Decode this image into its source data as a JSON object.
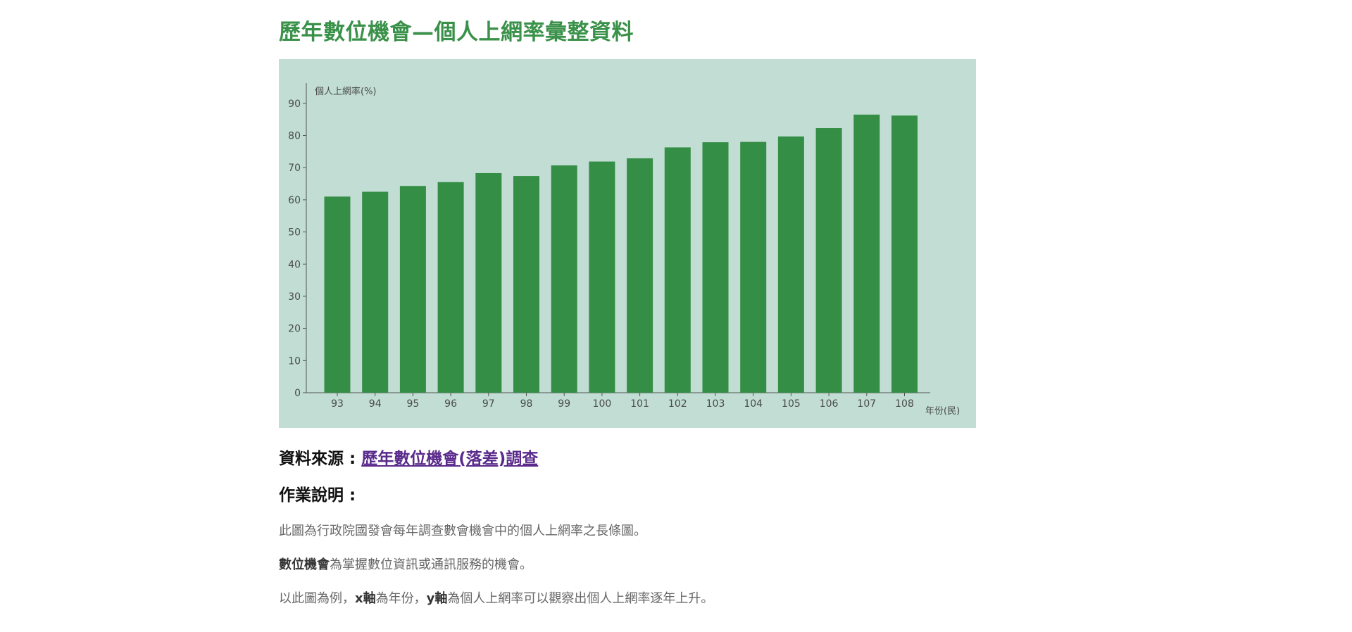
{
  "page": {
    "title": "歷年數位機會—個人上網率彙整資料"
  },
  "chart_data": {
    "type": "bar",
    "ylabel": "個人上網率(%)",
    "xlabel": "年份(民)",
    "categories": [
      "93",
      "94",
      "95",
      "96",
      "97",
      "98",
      "99",
      "100",
      "101",
      "102",
      "103",
      "104",
      "105",
      "106",
      "107",
      "108"
    ],
    "values": [
      61,
      62.5,
      64.3,
      65.5,
      68.3,
      67.4,
      70.7,
      71.9,
      72.9,
      76.3,
      77.9,
      78,
      79.7,
      82.3,
      86.5,
      86.2
    ],
    "yticks": [
      0,
      10,
      20,
      30,
      40,
      50,
      60,
      70,
      80,
      90
    ],
    "ylim": [
      0,
      95
    ],
    "grid": false,
    "bar_color": "#358e45",
    "background": "#c1ddd4"
  },
  "source": {
    "label": "資料來源 : ",
    "link_text": "歷年數位機會(落差)調查"
  },
  "notes": {
    "heading": "作業說明 :",
    "line1": "此圖為行政院國發會每年調查數會機會中的個人上網率之長條圖。",
    "line2_bold": "數位機會",
    "line2_rest": "為掌握數位資訊或通訊服務的機會。",
    "line3_a": "以此圖為例，",
    "line3_x": "x軸",
    "line3_b": "為年份，",
    "line3_y": "y軸",
    "line3_c": "為個人上網率可以觀察出個人上網率逐年上升。"
  }
}
